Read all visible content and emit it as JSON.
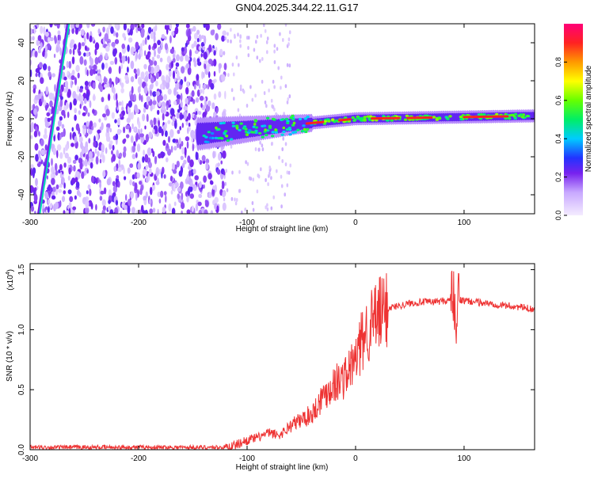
{
  "title": "GN04.2025.344.22.11.G17",
  "chart_data": [
    {
      "type": "heatmap",
      "title": "GN04.2025.344.22.11.G17",
      "xlabel": "Height of straight line (km)",
      "ylabel": "Frequency (Hz)",
      "xlim": [
        -300,
        165
      ],
      "ylim": [
        -50,
        50
      ],
      "xticks": [
        -300,
        -200,
        -100,
        0,
        100
      ],
      "yticks": [
        -40,
        -20,
        0,
        20,
        40
      ],
      "colorbar": {
        "label": "Normalized spectral amplitude",
        "range": [
          0,
          1
        ],
        "ticks": [
          "0.0",
          "0.2",
          "0.4",
          "0.6",
          "0.8"
        ],
        "tick_values": [
          0,
          0.2,
          0.4,
          0.6,
          0.8
        ]
      },
      "features": [
        {
          "name": "scatter noise region",
          "x_range": [
            -300,
            -120
          ],
          "amplitude": 0.15
        },
        {
          "name": "diagonal streak",
          "from": [
            -292,
            -50
          ],
          "to": [
            -265,
            50
          ],
          "amplitude": 0.45
        },
        {
          "name": "main signal band",
          "x_range": [
            -145,
            165
          ],
          "frequency_near": 0,
          "amplitude_peak": 0.95
        }
      ]
    },
    {
      "type": "line",
      "title": "",
      "xlabel": "Height of straight line (km)",
      "ylabel": "SNR (10 * v/v)",
      "multiplier_label": "(x10",
      "multiplier_exp": "4",
      "multiplier_close": ")",
      "xlim": [
        -300,
        165
      ],
      "ylim": [
        0,
        1.55
      ],
      "xticks": [
        -300,
        -200,
        -100,
        0,
        100
      ],
      "yticks": [
        "0.0",
        "0.5",
        "1.0",
        "1.5"
      ],
      "ytick_values": [
        0,
        0.5,
        1.0,
        1.5
      ],
      "color": "#ee3333",
      "series": [
        {
          "name": "SNR",
          "x": [
            -300,
            -250,
            -200,
            -150,
            -120,
            -110,
            -100,
            -90,
            -80,
            -70,
            -60,
            -50,
            -40,
            -30,
            -20,
            -10,
            0,
            10,
            20,
            30,
            40,
            50,
            60,
            70,
            80,
            85,
            90,
            93,
            95,
            100,
            110,
            120,
            130,
            140,
            150,
            165
          ],
          "y": [
            0.02,
            0.02,
            0.02,
            0.02,
            0.02,
            0.04,
            0.08,
            0.1,
            0.14,
            0.12,
            0.2,
            0.25,
            0.3,
            0.45,
            0.55,
            0.6,
            0.75,
            1.0,
            1.1,
            1.18,
            1.2,
            1.22,
            1.23,
            1.23,
            1.24,
            1.24,
            1.3,
            0.95,
            1.25,
            1.24,
            1.23,
            1.22,
            1.21,
            1.2,
            1.19,
            1.17
          ]
        }
      ]
    }
  ]
}
